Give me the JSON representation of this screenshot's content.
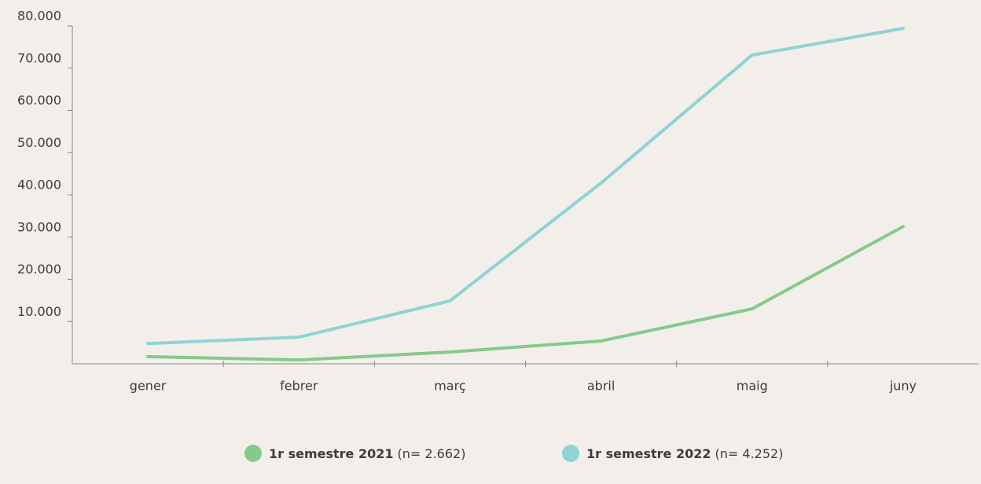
{
  "chart_data": {
    "type": "line",
    "categories": [
      "gener",
      "febrer",
      "març",
      "abril",
      "maig",
      "juny"
    ],
    "series": [
      {
        "name": "1r semestre 2021",
        "note": "(n= 2.662)",
        "color": "#86c98c",
        "values": [
          1700,
          900,
          2800,
          5400,
          13000,
          32500
        ]
      },
      {
        "name": "1r semestre 2022",
        "note": "(n= 4.252)",
        "color": "#8fd3d3",
        "values": [
          4800,
          6300,
          14900,
          42800,
          73100,
          79400
        ]
      }
    ],
    "ylim": [
      0,
      80000
    ],
    "yticks": [
      {
        "value": 10000,
        "label": "10.000"
      },
      {
        "value": 20000,
        "label": "20.000"
      },
      {
        "value": 30000,
        "label": "30.000"
      },
      {
        "value": 40000,
        "label": "40.000"
      },
      {
        "value": 50000,
        "label": "50.000"
      },
      {
        "value": 60000,
        "label": "60.000"
      },
      {
        "value": 70000,
        "label": "70.000"
      },
      {
        "value": 80000,
        "label": "80.000"
      }
    ],
    "legend": "bottom"
  }
}
